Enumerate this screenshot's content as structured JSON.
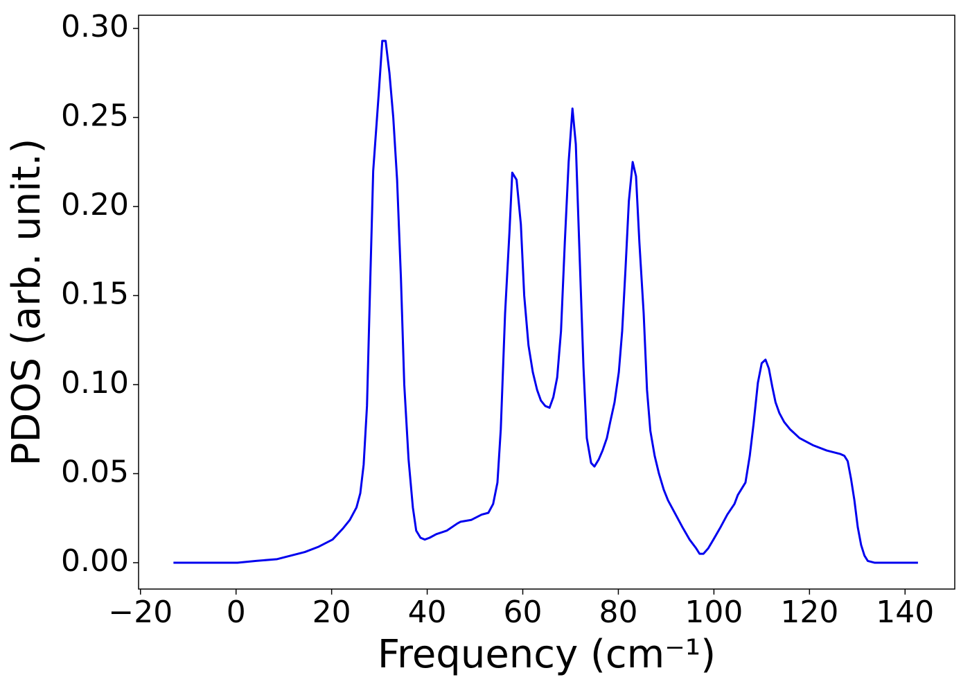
{
  "chart_data": {
    "type": "line",
    "xlabel": "Frequency (cm⁻¹)",
    "ylabel": "PDOS (arb. unit.)",
    "x": [
      -13.1,
      0.3,
      4.2,
      8.6,
      14.4,
      17.3,
      20.2,
      22.3,
      23.8,
      25.2,
      26.0,
      26.7,
      27.4,
      28.1,
      28.7,
      29.9,
      30.6,
      31.3,
      32.1,
      32.9,
      33.7,
      34.5,
      35.2,
      36.1,
      37.0,
      37.7,
      38.6,
      39.5,
      40.5,
      41.9,
      44.1,
      46.3,
      47.0,
      49.2,
      51.4,
      52.8,
      53.8,
      54.7,
      55.4,
      56.3,
      57.2,
      57.8,
      58.7,
      59.6,
      60.3,
      61.2,
      62.1,
      63.0,
      63.8,
      64.7,
      65.6,
      66.4,
      67.2,
      68.0,
      68.8,
      69.6,
      70.4,
      71.1,
      71.8,
      72.7,
      73.4,
      74.3,
      75.0,
      75.9,
      76.7,
      77.6,
      78.3,
      79.2,
      80.1,
      80.8,
      81.5,
      82.2,
      83.0,
      83.7,
      84.4,
      85.3,
      86.0,
      86.7,
      87.6,
      88.5,
      89.5,
      90.4,
      92.0,
      93.4,
      94.9,
      96.3,
      97.0,
      97.8,
      98.8,
      99.9,
      101.4,
      102.8,
      104.3,
      105.0,
      106.6,
      107.5,
      108.3,
      109.2,
      110.0,
      110.8,
      111.5,
      112.2,
      112.9,
      113.7,
      114.7,
      115.9,
      117.9,
      120.7,
      123.6,
      126.5,
      127.3,
      128.0,
      128.7,
      129.4,
      130.1,
      130.8,
      131.5,
      132.2,
      133.6,
      142.7
    ],
    "series": [
      {
        "name": "PDOS",
        "color": "#0000ee",
        "values": [
          0,
          0,
          0.001,
          0.002,
          0.006,
          0.009,
          0.013,
          0.019,
          0.024,
          0.031,
          0.039,
          0.055,
          0.088,
          0.16,
          0.22,
          0.265,
          0.293,
          0.293,
          0.275,
          0.25,
          0.215,
          0.16,
          0.1,
          0.058,
          0.031,
          0.018,
          0.014,
          0.013,
          0.014,
          0.016,
          0.018,
          0.022,
          0.023,
          0.024,
          0.027,
          0.028,
          0.033,
          0.045,
          0.075,
          0.14,
          0.185,
          0.219,
          0.215,
          0.19,
          0.15,
          0.122,
          0.107,
          0.097,
          0.091,
          0.088,
          0.087,
          0.093,
          0.104,
          0.13,
          0.18,
          0.225,
          0.255,
          0.235,
          0.18,
          0.11,
          0.07,
          0.056,
          0.054,
          0.058,
          0.063,
          0.07,
          0.079,
          0.09,
          0.107,
          0.13,
          0.165,
          0.203,
          0.225,
          0.217,
          0.18,
          0.14,
          0.097,
          0.074,
          0.06,
          0.05,
          0.041,
          0.035,
          0.027,
          0.02,
          0.013,
          0.008,
          0.005,
          0.005,
          0.008,
          0.013,
          0.02,
          0.027,
          0.033,
          0.038,
          0.045,
          0.06,
          0.078,
          0.101,
          0.112,
          0.114,
          0.109,
          0.099,
          0.09,
          0.084,
          0.079,
          0.075,
          0.07,
          0.066,
          0.063,
          0.061,
          0.06,
          0.057,
          0.047,
          0.035,
          0.02,
          0.01,
          0.004,
          0.001,
          0,
          0
        ]
      }
    ],
    "xlim": [
      -20.4,
      150.4
    ],
    "ylim": [
      -0.0148,
      0.3074
    ],
    "xticks": [
      {
        "value": -20,
        "label": "−20"
      },
      0,
      20,
      40,
      60,
      80,
      100,
      120,
      140
    ],
    "yticks": [
      {
        "value": 0,
        "label": "0.00"
      },
      {
        "value": 0.05,
        "label": "0.05"
      },
      {
        "value": 0.1,
        "label": "0.10"
      },
      {
        "value": 0.15,
        "label": "0.15"
      },
      {
        "value": 0.2,
        "label": "0.20"
      },
      {
        "value": 0.25,
        "label": "0.25"
      },
      {
        "value": 0.3,
        "label": "0.30"
      }
    ],
    "grid": false
  }
}
